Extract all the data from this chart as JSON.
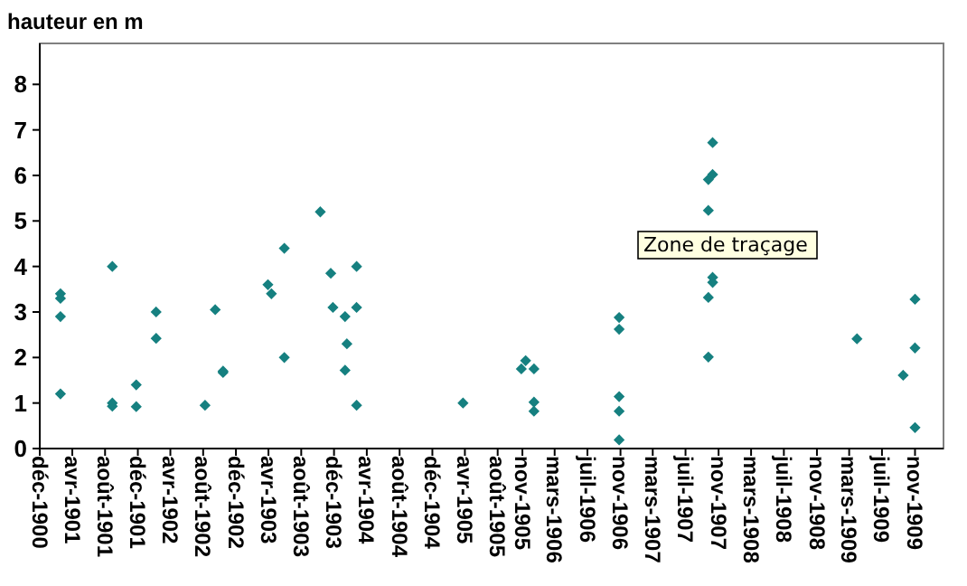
{
  "chart_data": {
    "type": "scatter",
    "ylabel": "hauteur en m",
    "marker": "diamond",
    "grid": false,
    "annotations": [
      "Zone de traçage"
    ],
    "xlim": [
      "1900-12-01",
      "1910-02-15"
    ],
    "ylim": [
      0,
      8.9
    ],
    "yticks": [
      0,
      1,
      2,
      3,
      4,
      5,
      6,
      7,
      8
    ],
    "xticks": [
      {
        "value": "1900-12-01",
        "label": "déc-1900"
      },
      {
        "value": "1901-04-01",
        "label": "avr-1901"
      },
      {
        "value": "1901-08-01",
        "label": "août-1901"
      },
      {
        "value": "1901-12-01",
        "label": "déc-1901"
      },
      {
        "value": "1902-04-01",
        "label": "avr-1902"
      },
      {
        "value": "1902-08-01",
        "label": "août-1902"
      },
      {
        "value": "1902-12-01",
        "label": "déc-1902"
      },
      {
        "value": "1903-04-01",
        "label": "avr-1903"
      },
      {
        "value": "1903-08-01",
        "label": "août-1903"
      },
      {
        "value": "1903-12-01",
        "label": "déc-1903"
      },
      {
        "value": "1904-04-01",
        "label": "avr-1904"
      },
      {
        "value": "1904-08-01",
        "label": "août-1904"
      },
      {
        "value": "1904-12-01",
        "label": "déc-1904"
      },
      {
        "value": "1905-04-01",
        "label": "avr-1905"
      },
      {
        "value": "1905-08-01",
        "label": "août-1905"
      },
      {
        "value": "1905-11-01",
        "label": "nov-1905"
      },
      {
        "value": "1906-03-01",
        "label": "mars-1906"
      },
      {
        "value": "1906-07-01",
        "label": "juil-1906"
      },
      {
        "value": "1906-11-01",
        "label": "nov-1906"
      },
      {
        "value": "1907-03-01",
        "label": "mars-1907"
      },
      {
        "value": "1907-07-01",
        "label": "juil-1907"
      },
      {
        "value": "1907-11-01",
        "label": "nov-1907"
      },
      {
        "value": "1908-03-01",
        "label": "mars-1908"
      },
      {
        "value": "1908-07-01",
        "label": "juil-1908"
      },
      {
        "value": "1908-11-01",
        "label": "nov-1908"
      },
      {
        "value": "1909-03-01",
        "label": "mars-1909"
      },
      {
        "value": "1909-07-01",
        "label": "juil-1909"
      },
      {
        "value": "1909-11-01",
        "label": "nov-1909"
      }
    ],
    "series": [
      {
        "color": "#168080",
        "x": [
          "1901-02-16",
          "1901-02-16",
          "1901-02-16",
          "1901-02-16",
          "1901-08-28",
          "1901-08-28",
          "1901-08-28",
          "1901-11-25",
          "1901-11-25",
          "1902-02-07",
          "1902-02-07",
          "1902-08-08",
          "1902-09-15",
          "1902-10-14",
          "1902-10-14",
          "1903-03-30",
          "1903-04-12",
          "1903-05-30",
          "1903-05-30",
          "1903-10-11",
          "1903-11-19",
          "1903-11-27",
          "1904-01-11",
          "1904-01-18",
          "1904-01-11",
          "1904-02-23",
          "1904-02-23",
          "1904-02-23",
          "1905-03-25",
          "1905-10-28",
          "1905-11-13",
          "1905-12-14",
          "1905-12-14",
          "1905-12-14",
          "1906-10-27",
          "1906-10-27",
          "1906-10-27",
          "1906-10-27",
          "1906-10-27",
          "1907-10-10",
          "1907-10-10",
          "1907-09-24",
          "1907-09-24",
          "1907-10-10",
          "1907-10-10",
          "1907-09-24",
          "1907-09-24",
          "1909-03-30",
          "1909-09-18",
          "1909-11-01",
          "1909-11-01",
          "1909-11-01"
        ],
        "values": [
          3.4,
          3.3,
          2.9,
          1.2,
          4.0,
          1.0,
          0.93,
          1.4,
          0.92,
          3.0,
          2.42,
          0.95,
          3.05,
          1.7,
          1.67,
          3.6,
          3.4,
          4.4,
          2.0,
          5.2,
          3.85,
          3.1,
          2.9,
          2.3,
          1.72,
          4.0,
          3.1,
          0.95,
          1.0,
          1.75,
          1.93,
          1.75,
          1.02,
          0.82,
          2.88,
          2.62,
          1.14,
          0.82,
          0.19,
          6.72,
          6.02,
          5.91,
          5.23,
          3.76,
          3.65,
          3.32,
          2.01,
          2.41,
          1.61,
          3.28,
          2.21,
          0.46
        ]
      }
    ]
  }
}
